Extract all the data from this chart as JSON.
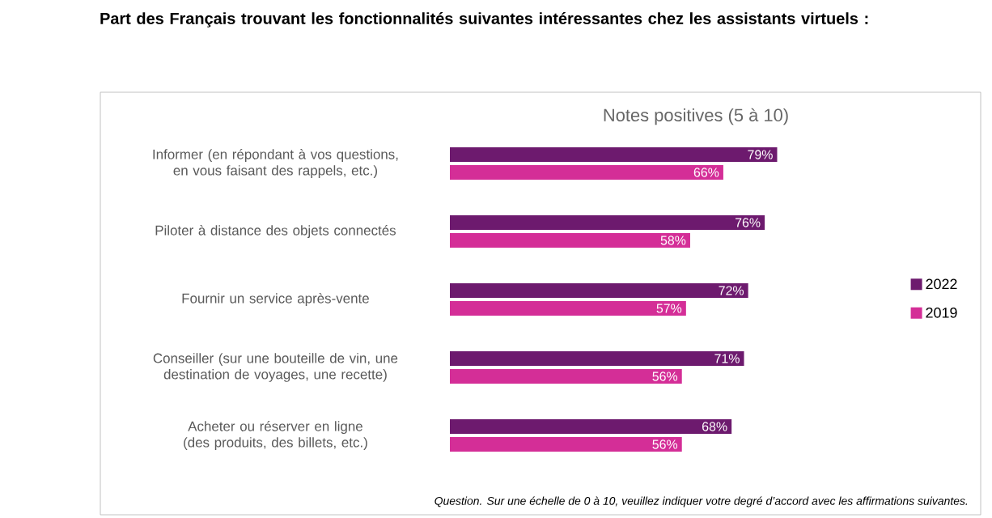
{
  "chart_data": {
    "type": "bar",
    "orientation": "horizontal",
    "title": "Part des Français trouvant les fonctionnalités suivantes intéressantes chez les assistants virtuels :",
    "subtitle": "Notes positives (5 à 10)",
    "categories": [
      "Informer  (en répondant à vos questions, en vous faisant des rappels, etc.)",
      "Piloter à distance des objets connectés",
      "Fournir un service après-vente",
      "Conseiller (sur une bouteille de vin, une destination de voyages, une recette)",
      "Acheter ou réserver en ligne (des produits, des billets, etc.)"
    ],
    "series": [
      {
        "name": "2022",
        "color": "#6d1a6e",
        "values": [
          79,
          76,
          72,
          71,
          68
        ],
        "value_labels": [
          "79%",
          "76%",
          "72%",
          "71%",
          "68%"
        ]
      },
      {
        "name": "2019",
        "color": "#d42e97",
        "values": [
          66,
          58,
          57,
          56,
          56
        ],
        "value_labels": [
          "66%",
          "58%",
          "57%",
          "56%",
          "56%"
        ]
      }
    ],
    "legend": "right",
    "annotations": [
      "Question. Sur une échelle de 0 à 10, veuillez indiquer votre degré d’accord avec les affirmations suivantes."
    ]
  }
}
